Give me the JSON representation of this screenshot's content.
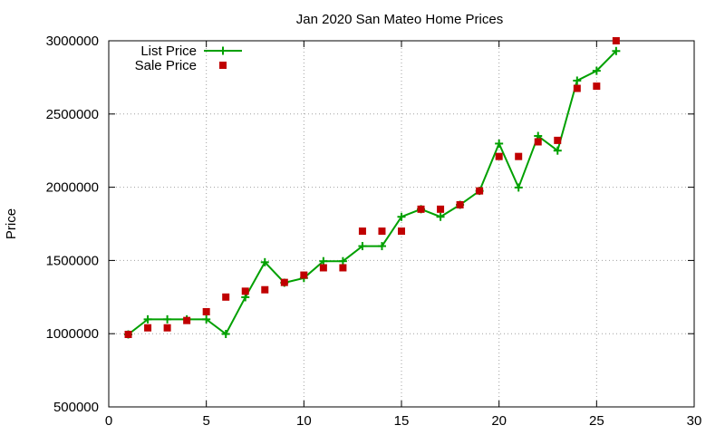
{
  "chart_data": {
    "type": "line",
    "title": "Jan 2020 San Mateo Home Prices",
    "xlabel": "",
    "ylabel": "Price",
    "xlim": [
      0,
      30
    ],
    "ylim": [
      500000,
      3000000
    ],
    "xticks": [
      0,
      5,
      10,
      15,
      20,
      25,
      30
    ],
    "yticks": [
      500000,
      1000000,
      1500000,
      2000000,
      2500000,
      3000000
    ],
    "grid": true,
    "legend_position": "top-left",
    "series": [
      {
        "name": "List Price",
        "style": "line-with-plus-markers",
        "color": "#00a000",
        "points": [
          [
            1,
            995000
          ],
          [
            2,
            1098000
          ],
          [
            3,
            1098000
          ],
          [
            4,
            1098000
          ],
          [
            5,
            1098000
          ],
          [
            6,
            998000
          ],
          [
            7,
            1249000
          ],
          [
            8,
            1488000
          ],
          [
            9,
            1348000
          ],
          [
            10,
            1380000
          ],
          [
            11,
            1495000
          ],
          [
            12,
            1495000
          ],
          [
            13,
            1598000
          ],
          [
            14,
            1598000
          ],
          [
            15,
            1798000
          ],
          [
            16,
            1850000
          ],
          [
            17,
            1798000
          ],
          [
            18,
            1880000
          ],
          [
            19,
            1975000
          ],
          [
            20,
            2298000
          ],
          [
            21,
            1998000
          ],
          [
            22,
            2350000
          ],
          [
            23,
            2250000
          ],
          [
            24,
            2728000
          ],
          [
            25,
            2795000
          ],
          [
            26,
            2930000
          ]
        ]
      },
      {
        "name": "Sale Price",
        "style": "square-markers",
        "color": "#c00000",
        "points": [
          [
            1,
            995000
          ],
          [
            2,
            1040000
          ],
          [
            3,
            1040000
          ],
          [
            4,
            1090000
          ],
          [
            5,
            1150000
          ],
          [
            6,
            1250000
          ],
          [
            7,
            1290000
          ],
          [
            8,
            1300000
          ],
          [
            9,
            1350000
          ],
          [
            10,
            1400000
          ],
          [
            11,
            1450000
          ],
          [
            12,
            1450000
          ],
          [
            13,
            1700000
          ],
          [
            14,
            1700000
          ],
          [
            15,
            1700000
          ],
          [
            16,
            1850000
          ],
          [
            17,
            1850000
          ],
          [
            18,
            1880000
          ],
          [
            19,
            1975000
          ],
          [
            20,
            2210000
          ],
          [
            21,
            2210000
          ],
          [
            22,
            2310000
          ],
          [
            23,
            2320000
          ],
          [
            24,
            2675000
          ],
          [
            25,
            2690000
          ],
          [
            26,
            3000000
          ]
        ]
      }
    ]
  }
}
